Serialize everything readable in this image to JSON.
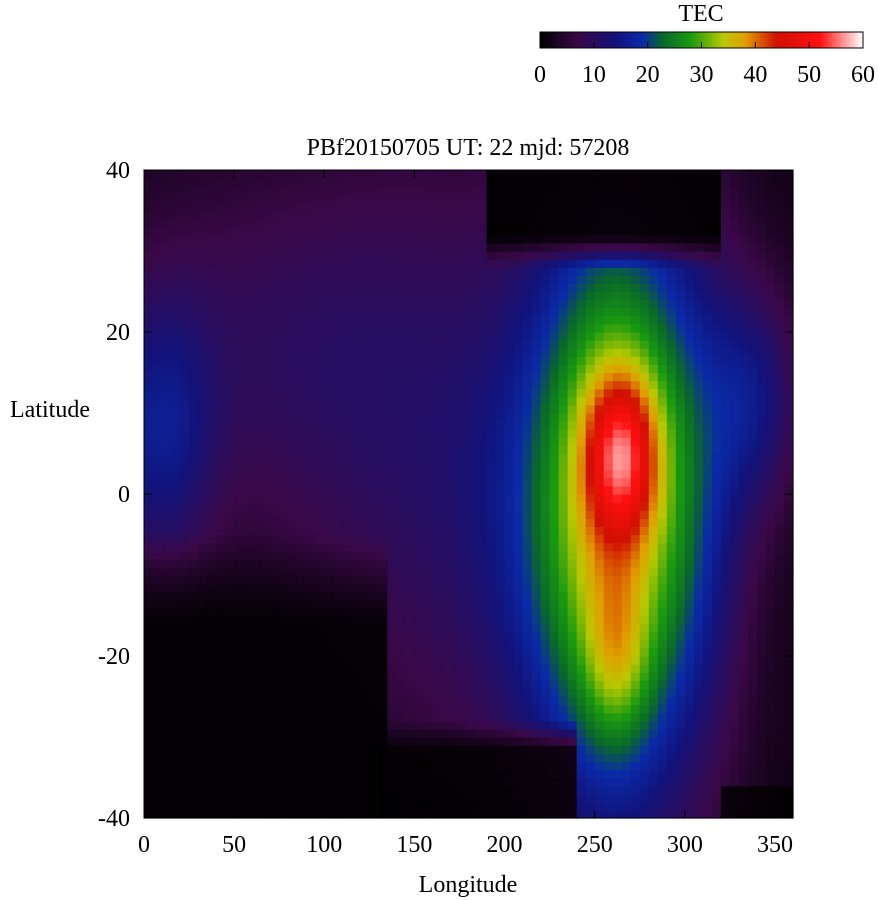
{
  "chart_data": {
    "type": "heatmap",
    "title": "PBf20150705  UT: 22  mjd: 57208",
    "xlabel": "Longitude",
    "ylabel": "Latitude",
    "xlim": [
      0,
      360
    ],
    "ylim": [
      -40,
      40
    ],
    "xticks": [
      "0",
      "50",
      "100",
      "150",
      "200",
      "250",
      "300",
      "350"
    ],
    "yticks": [
      "-40",
      "-20",
      "0",
      "20",
      "40"
    ],
    "grid": false,
    "colorbar": {
      "label": "TEC",
      "range": [
        0,
        60
      ],
      "ticks": [
        "0",
        "10",
        "20",
        "30",
        "40",
        "50",
        "60"
      ],
      "stops": [
        {
          "v": 0,
          "color": "#000000"
        },
        {
          "v": 7,
          "color": "#3a0848"
        },
        {
          "v": 14,
          "color": "#12127a"
        },
        {
          "v": 19,
          "color": "#0a2aa8"
        },
        {
          "v": 23,
          "color": "#0a6a28"
        },
        {
          "v": 28,
          "color": "#1a9a10"
        },
        {
          "v": 34,
          "color": "#b8c800"
        },
        {
          "v": 38,
          "color": "#e0a000"
        },
        {
          "v": 44,
          "color": "#d01000"
        },
        {
          "v": 52,
          "color": "#ff1010"
        },
        {
          "v": 60,
          "color": "#ffffff"
        }
      ]
    },
    "grid_resolution": {
      "lon_step": 5,
      "lat_step": 1
    }
  }
}
